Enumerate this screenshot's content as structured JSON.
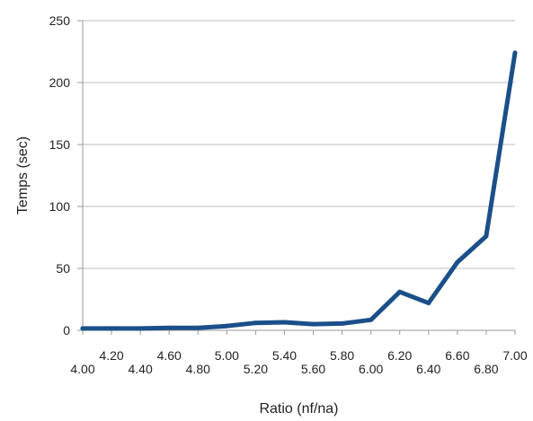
{
  "chart_data": {
    "type": "line",
    "title": "",
    "xlabel": "Ratio (nf/na)",
    "ylabel": "Temps (sec)",
    "xlim": [
      4.0,
      7.0
    ],
    "ylim": [
      0,
      250
    ],
    "grid": true,
    "legend": "none",
    "x_ticks": [
      "4.00",
      "4.20",
      "4.40",
      "4.60",
      "4.80",
      "5.00",
      "5.20",
      "5.40",
      "5.60",
      "5.80",
      "6.00",
      "6.20",
      "6.40",
      "6.60",
      "6.80",
      "7.00"
    ],
    "y_ticks": [
      "0",
      "50",
      "100",
      "150",
      "200",
      "250"
    ],
    "x": [
      4.0,
      4.2,
      4.4,
      4.6,
      4.8,
      5.0,
      5.2,
      5.4,
      5.6,
      5.8,
      6.0,
      6.2,
      6.4,
      6.6,
      6.8,
      7.0
    ],
    "series": [
      {
        "values": [
          1.5,
          1.5,
          1.5,
          2,
          2,
          3.5,
          6,
          6.5,
          5,
          5.5,
          8.5,
          31,
          22,
          55,
          76,
          224
        ],
        "color": "#1b4f8a"
      }
    ],
    "grid_color": "#bdbdbd",
    "axis_color": "#9a9a9a"
  }
}
